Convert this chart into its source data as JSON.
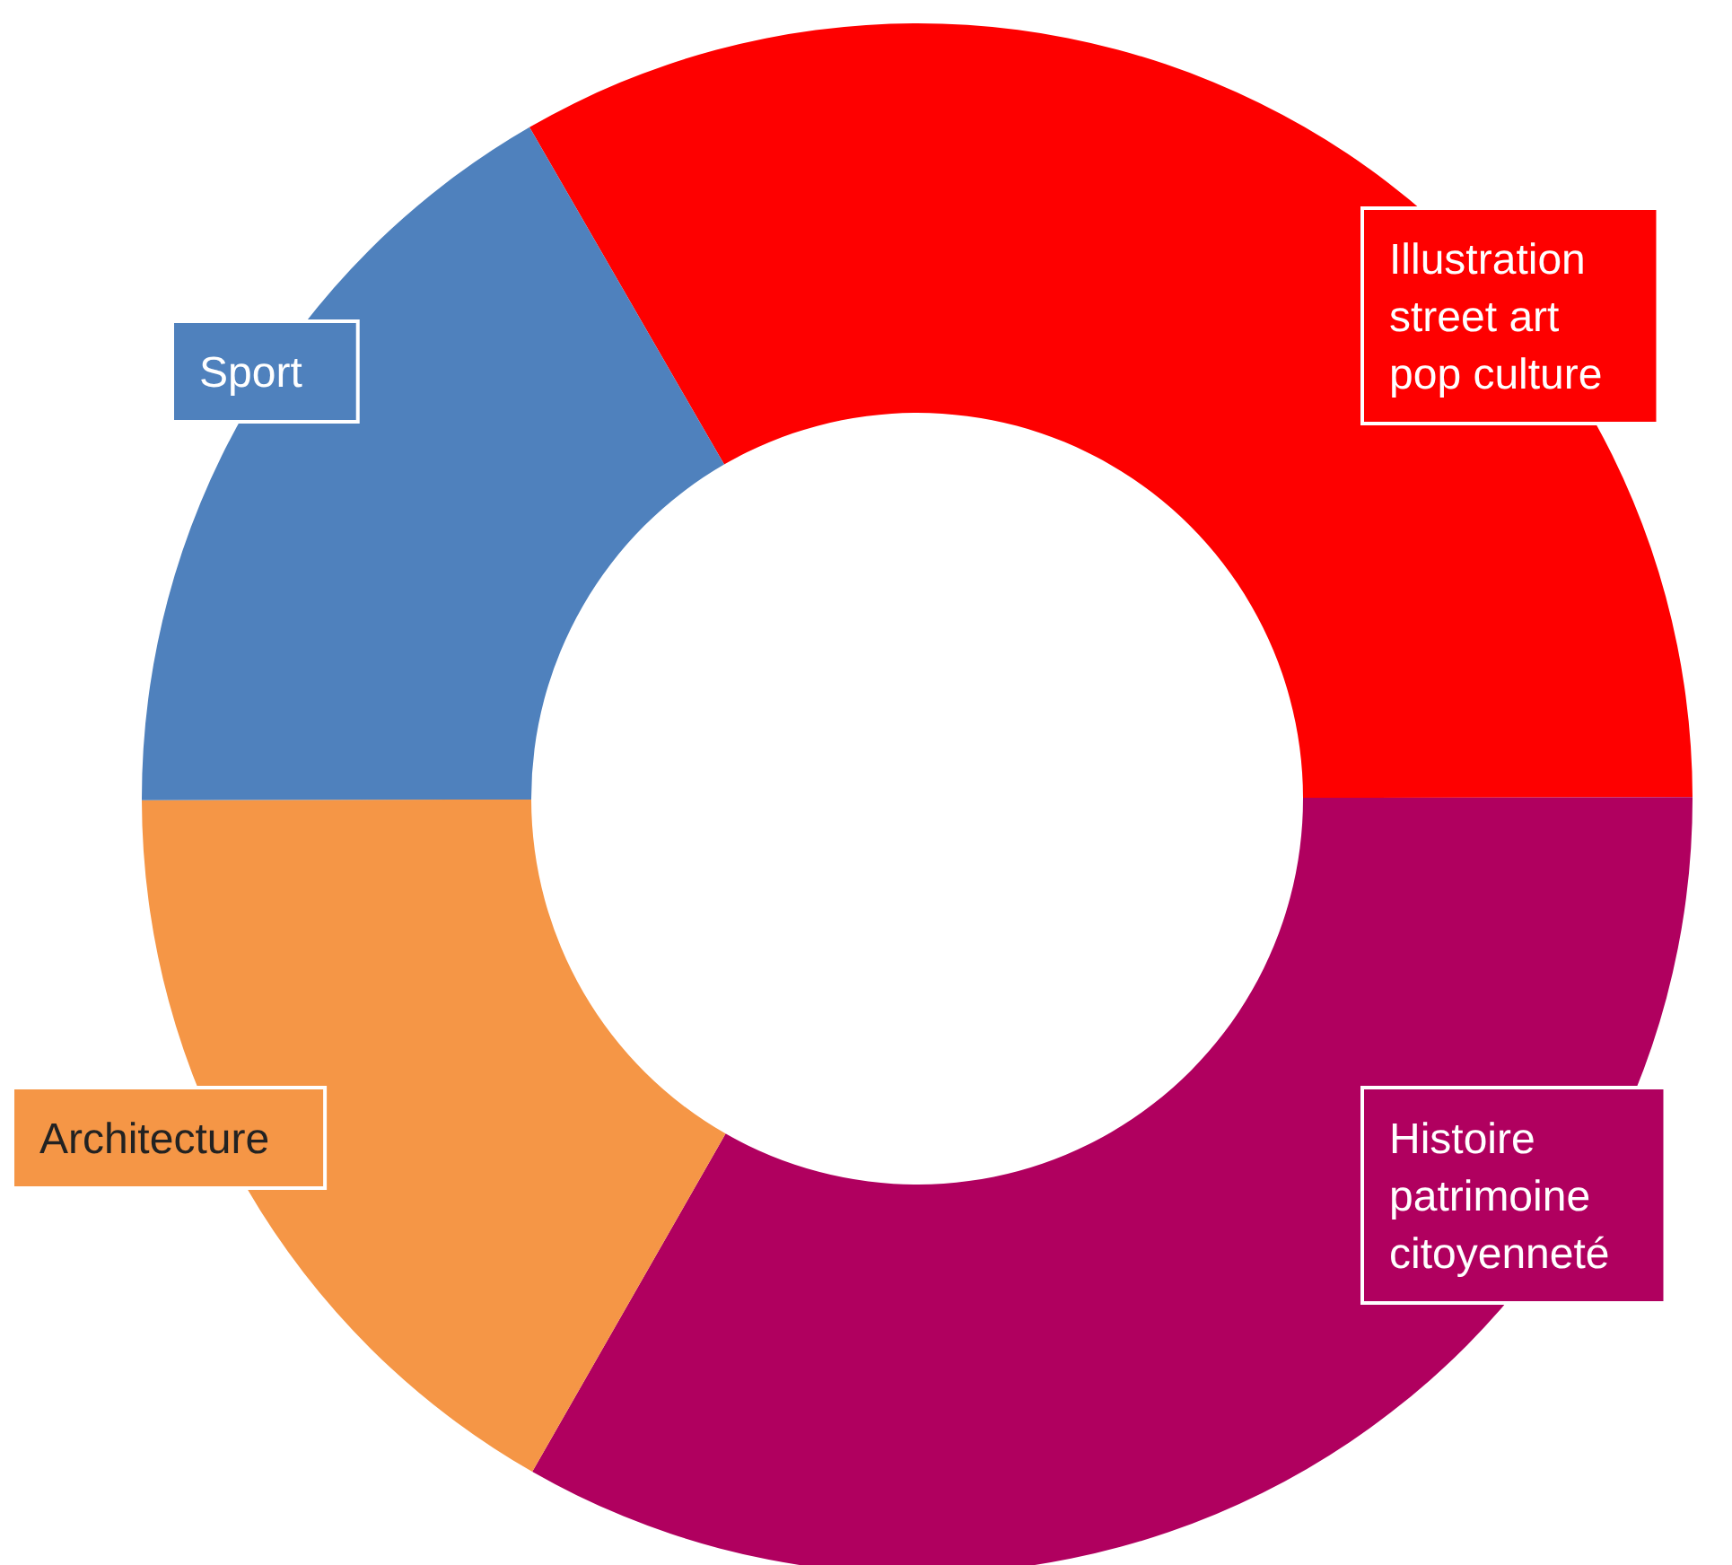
{
  "chart_data": {
    "type": "donut",
    "categories": [
      "Illustration\nstreet art\npop culture",
      "Histoire\npatrimoine\ncitoyenneté",
      "Architecture",
      "Sport"
    ],
    "values": [
      33.3,
      33.3,
      16.7,
      16.7
    ],
    "colors": [
      "#fe0000",
      "#b0005f",
      "#f59646",
      "#4f81bd"
    ]
  }
}
